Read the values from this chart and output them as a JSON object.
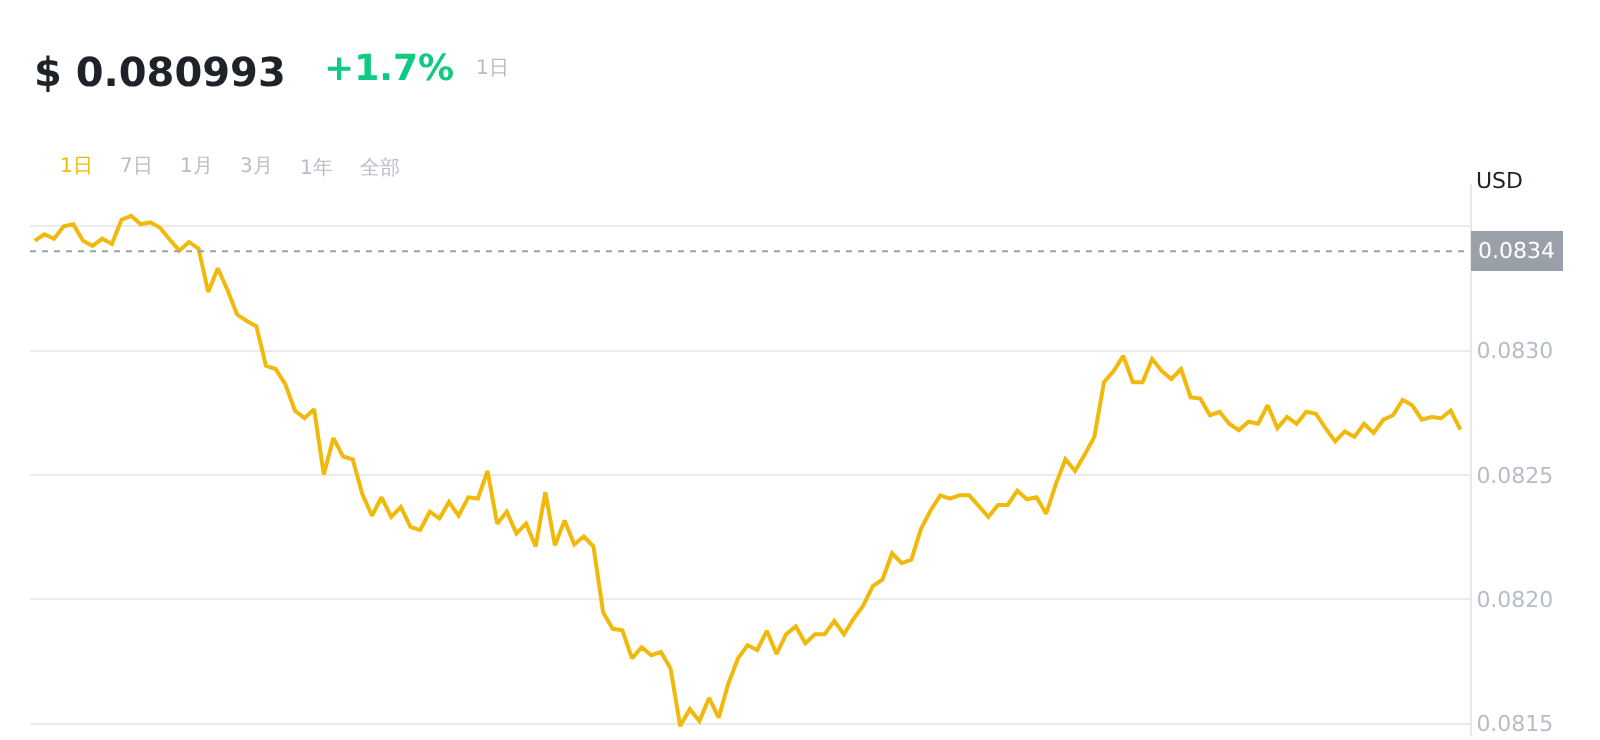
{
  "chart_data": {
    "type": "line",
    "title": "$ 0.080993",
    "subtitle": "+1.7%",
    "ylabel": "USD",
    "annotations": [
      "1日",
      "1日",
      "7日",
      "1月",
      "3月",
      "1年",
      "全部"
    ],
    "categories": [
      null,
      null,
      null,
      null,
      null,
      null,
      null,
      null,
      null,
      null,
      null,
      null,
      null,
      null,
      null,
      null,
      null,
      null,
      null,
      null,
      null,
      null,
      null,
      null,
      null,
      null,
      null,
      null,
      null,
      null,
      null,
      null,
      null,
      null,
      null,
      null,
      null,
      null,
      null,
      null,
      null,
      null,
      null,
      null,
      null,
      null,
      null,
      null,
      null,
      null,
      null,
      null,
      null,
      null,
      null,
      null,
      null,
      null,
      null,
      null,
      null,
      null,
      null,
      null,
      null,
      null,
      null,
      null,
      null,
      null,
      null,
      null,
      null,
      null,
      null,
      null,
      null,
      null,
      null,
      null,
      null,
      null,
      null,
      null,
      null,
      null,
      null,
      null,
      null,
      null,
      null,
      null,
      null,
      null,
      null,
      null,
      null,
      null,
      null,
      null,
      null,
      null,
      null,
      null,
      null,
      null,
      null,
      null,
      null,
      null,
      null,
      null,
      null,
      null,
      null,
      null,
      null,
      null,
      null,
      null,
      null,
      null,
      null,
      null,
      null,
      null,
      null,
      null,
      null,
      null,
      null,
      null,
      null,
      null,
      null,
      null,
      null,
      null,
      null,
      null,
      null,
      null,
      null,
      null,
      null,
      null,
      null,
      null,
      null
    ],
    "series": [
      {
        "color": "#f0b90b",
        "values": [
          0.083442,
          0.083468,
          0.08345,
          0.0835,
          0.083508,
          0.083442,
          0.083421,
          0.08345,
          0.083429,
          0.083526,
          0.083542,
          0.083508,
          0.083516,
          0.083494,
          0.083447,
          0.083402,
          0.083437,
          0.08341,
          0.083236,
          0.083331,
          0.083244,
          0.083145,
          0.083119,
          0.083098,
          0.082939,
          0.082926,
          0.082865,
          0.082759,
          0.082728,
          0.082764,
          0.082502,
          0.082648,
          0.082574,
          0.082563,
          0.082423,
          0.082336,
          0.08241,
          0.082331,
          0.082371,
          0.082291,
          0.082278,
          0.082352,
          0.082325,
          0.082391,
          0.082336,
          0.08241,
          0.082405,
          0.082516,
          0.082304,
          0.082352,
          0.082264,
          0.082304,
          0.082212,
          0.082431,
          0.082217,
          0.082317,
          0.08222,
          0.082252,
          0.082212,
          0.081947,
          0.081881,
          0.081875,
          0.081762,
          0.081807,
          0.081775,
          0.081788,
          0.081722,
          0.08149,
          0.081558,
          0.08151,
          0.081603,
          0.081524,
          0.081661,
          0.081762,
          0.081815,
          0.081796,
          0.081873,
          0.08178,
          0.081859,
          0.081891,
          0.081823,
          0.081859,
          0.081859,
          0.081913,
          0.081859,
          0.081921,
          0.081974,
          0.082053,
          0.082079,
          0.082185,
          0.082145,
          0.082159,
          0.082283,
          0.082357,
          0.082418,
          0.082405,
          0.082418,
          0.082418,
          0.082375,
          0.082331,
          0.082379,
          0.082379,
          0.082436,
          0.082402,
          0.08241,
          0.082344,
          0.082463,
          0.082563,
          0.082516,
          0.082582,
          0.082653,
          0.082873,
          0.082918,
          0.082979,
          0.082873,
          0.082873,
          0.082966,
          0.082918,
          0.082886,
          0.082926,
          0.082812,
          0.082807,
          0.08274,
          0.082754,
          0.082706,
          0.08268,
          0.082714,
          0.082706,
          0.08278,
          0.082688,
          0.082733,
          0.082706,
          0.082754,
          0.082746,
          0.082688,
          0.082635,
          0.082675,
          0.082653,
          0.082706,
          0.082669,
          0.082722,
          0.08274,
          0.082802,
          0.08278,
          0.082722,
          0.082733,
          0.082728,
          0.082759,
          0.082682
        ]
      }
    ],
    "ylim": [
      0.08145,
      0.08367
    ],
    "yticks": [
      {
        "value": 0.0815,
        "label": "0.0815"
      },
      {
        "value": 0.082,
        "label": "0.0820"
      },
      {
        "value": 0.0825,
        "label": "0.0825"
      },
      {
        "value": 0.083,
        "label": "0.0830"
      },
      {
        "value": 0.0835,
        "label": null
      }
    ],
    "ref_lines": [
      {
        "axis": "y",
        "value": 0.0834,
        "label": "0.0834",
        "color": "#9aa0aa",
        "line_style": "dotted"
      }
    ],
    "grid": "y",
    "marker": "none",
    "line_style": "solid"
  }
}
